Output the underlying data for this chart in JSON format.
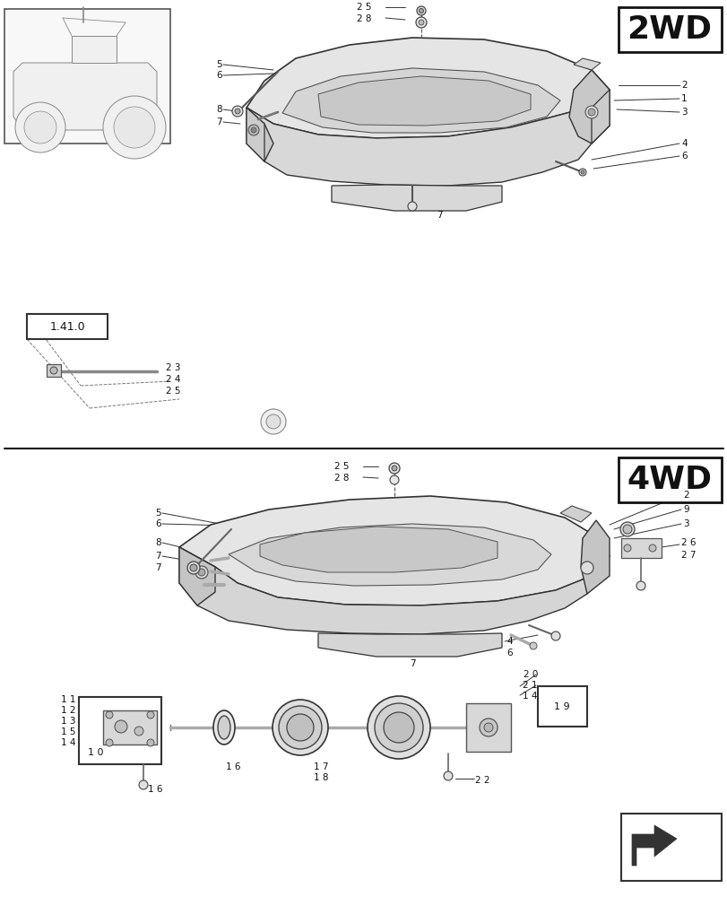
{
  "bg_color": "#ffffff",
  "line_color": "#333333",
  "gray_fill": "#e8e8e8",
  "dark_gray_fill": "#d0d0d0",
  "mid_gray": "#aaaaaa",
  "2wd_label": "2WD",
  "4wd_label": "4WD",
  "ref_label": "1.41.0"
}
